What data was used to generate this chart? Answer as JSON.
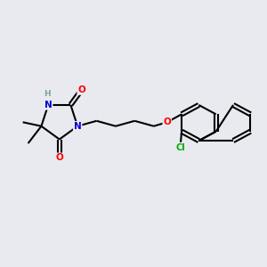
{
  "background_color": "#e8eaf0",
  "bond_color": "#000000",
  "bond_width": 1.5,
  "atom_colors": {
    "N": "#0000cd",
    "O": "#ff0000",
    "Cl": "#00aa00",
    "H": "#7fa0a0",
    "C": "#000000"
  },
  "figsize": [
    3.0,
    3.0
  ],
  "dpi": 100
}
